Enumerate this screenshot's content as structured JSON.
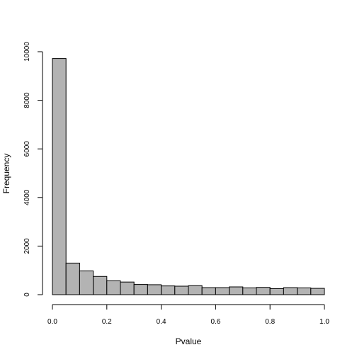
{
  "chart_data": {
    "type": "bar",
    "title": "",
    "xlabel": "Pvalue",
    "ylabel": "Frequency",
    "bin_edges": [
      0.0,
      0.05,
      0.1,
      0.15,
      0.2,
      0.25,
      0.3,
      0.35,
      0.4,
      0.45,
      0.5,
      0.55,
      0.6,
      0.65,
      0.7,
      0.75,
      0.8,
      0.85,
      0.9,
      0.95,
      1.0
    ],
    "values": [
      9720,
      1300,
      980,
      750,
      570,
      520,
      420,
      410,
      360,
      350,
      370,
      290,
      290,
      320,
      280,
      300,
      250,
      290,
      280,
      260
    ],
    "xlim": [
      0,
      1
    ],
    "ylim": [
      0,
      10000
    ],
    "x_ticks": [
      {
        "value": 0.0,
        "label": "0.0"
      },
      {
        "value": 0.2,
        "label": "0.2"
      },
      {
        "value": 0.4,
        "label": "0.4"
      },
      {
        "value": 0.6,
        "label": "0.6"
      },
      {
        "value": 0.8,
        "label": "0.8"
      },
      {
        "value": 1.0,
        "label": "1.0"
      }
    ],
    "y_ticks": [
      {
        "value": 0,
        "label": "0"
      },
      {
        "value": 2000,
        "label": "2000"
      },
      {
        "value": 4000,
        "label": "4000"
      },
      {
        "value": 6000,
        "label": "6000"
      },
      {
        "value": 8000,
        "label": "8000"
      },
      {
        "value": 10000,
        "label": "10000"
      }
    ],
    "grid": false,
    "bar_fill": "#b3b3b3",
    "bar_stroke": "#000000"
  }
}
